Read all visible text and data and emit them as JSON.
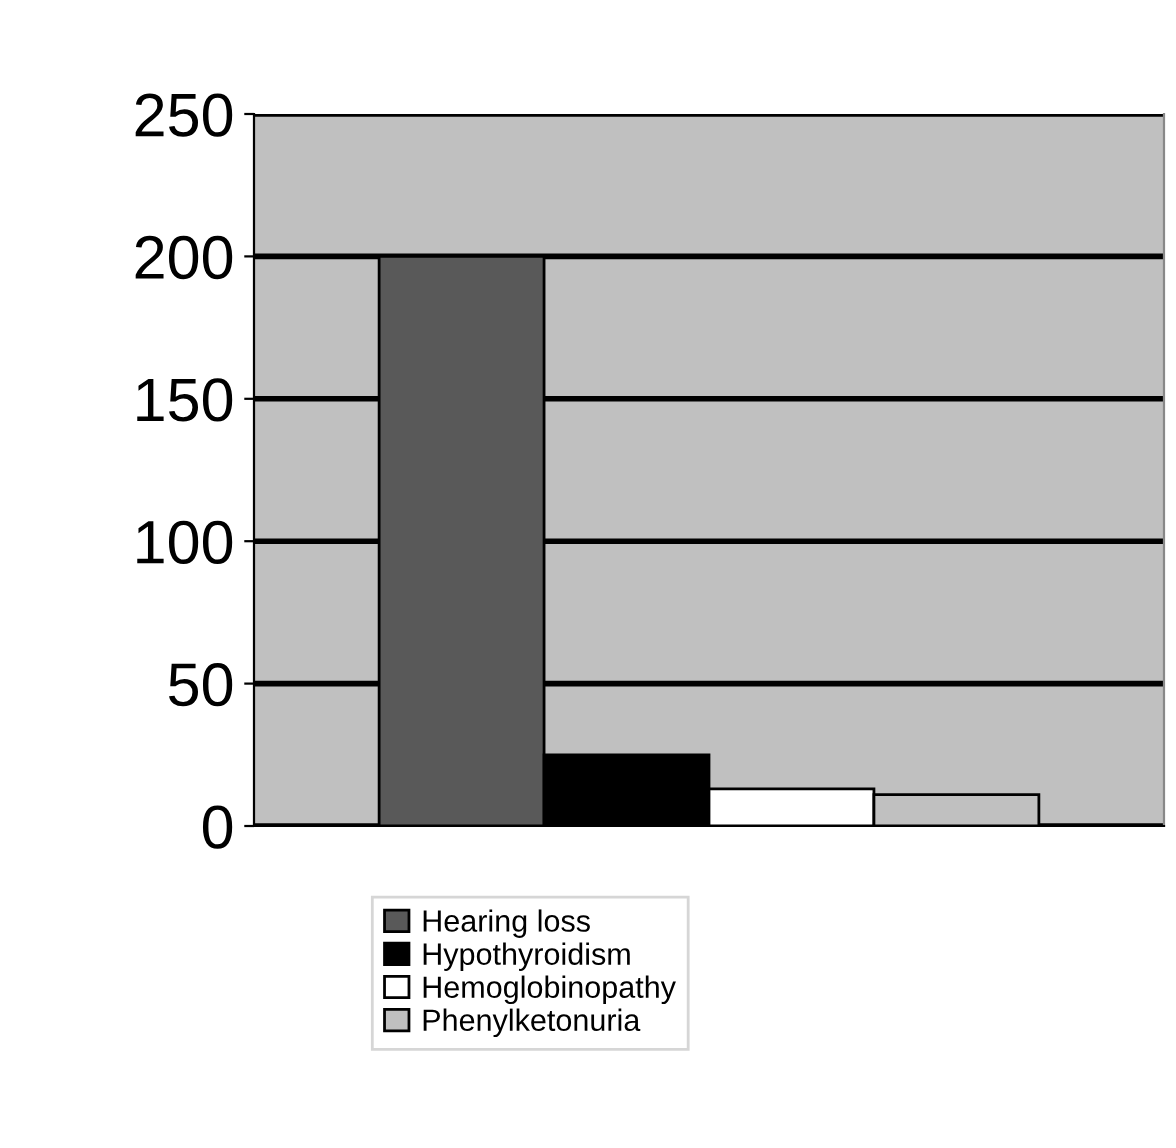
{
  "chart_data": {
    "type": "bar",
    "categories": [
      null
    ],
    "series": [
      {
        "name": "Hearing loss",
        "color": "#595959",
        "values": [
          200
        ]
      },
      {
        "name": "Hypothyroidism",
        "color": "#000000",
        "values": [
          25
        ]
      },
      {
        "name": "Hemoglobinopathy",
        "color": "#ffffff",
        "values": [
          13
        ]
      },
      {
        "name": "Phenylketonuria",
        "color": "#c0c0c0",
        "values": [
          11
        ]
      }
    ],
    "ylim": [
      0,
      250
    ],
    "yticks": [
      0,
      50,
      100,
      150,
      200,
      250
    ],
    "grid": "y",
    "legend": "bottom"
  }
}
